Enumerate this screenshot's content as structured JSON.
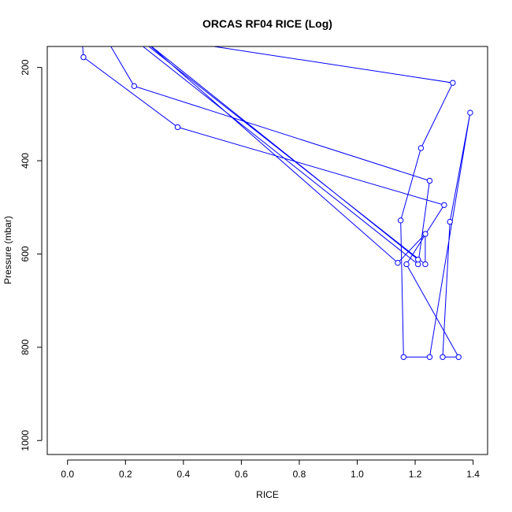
{
  "chart_data": {
    "type": "line",
    "title": "ORCAS RF04 RICE (Log)",
    "xlabel": "RICE",
    "ylabel": "Pressure (mbar)",
    "xlim": [
      -0.07,
      1.45
    ],
    "ylim": [
      1030,
      155
    ],
    "y_reversed": true,
    "x_ticks": [
      "0.0",
      "0.2",
      "0.4",
      "0.6",
      "0.8",
      "1.0",
      "1.2",
      "1.4"
    ],
    "y_ticks": [
      "200",
      "400",
      "600",
      "800",
      "1000"
    ],
    "grid": false,
    "legend": "none",
    "line_color": "#0000ff",
    "marker": "open-circle",
    "series": [
      {
        "points": [
          {
            "x": 0.05,
            "y": 140
          },
          {
            "x": 0.055,
            "y": 178
          },
          {
            "x": 0.38,
            "y": 328
          },
          {
            "x": 1.3,
            "y": 495
          },
          {
            "x": 1.17,
            "y": 622
          },
          {
            "x": 1.35,
            "y": 821
          },
          {
            "x": 1.295,
            "y": 821
          },
          {
            "x": 1.32,
            "y": 531
          },
          {
            "x": 1.39,
            "y": 297
          },
          {
            "x": 1.25,
            "y": 821
          },
          {
            "x": 1.16,
            "y": 821
          },
          {
            "x": 1.15,
            "y": 528
          },
          {
            "x": 1.22,
            "y": 373
          },
          {
            "x": 1.33,
            "y": 233
          },
          {
            "x": 0.4,
            "y": 145
          },
          {
            "x": 0.23,
            "y": 140
          },
          {
            "x": 1.21,
            "y": 622
          },
          {
            "x": 1.25,
            "y": 443
          },
          {
            "x": 0.23,
            "y": 240
          },
          {
            "x": 0.14,
            "y": 145
          },
          {
            "x": 0.26,
            "y": 145
          },
          {
            "x": 1.235,
            "y": 622
          },
          {
            "x": 1.235,
            "y": 557
          },
          {
            "x": 1.14,
            "y": 619
          },
          {
            "x": 0.27,
            "y": 145
          },
          {
            "x": 1.21,
            "y": 612
          }
        ]
      }
    ]
  }
}
